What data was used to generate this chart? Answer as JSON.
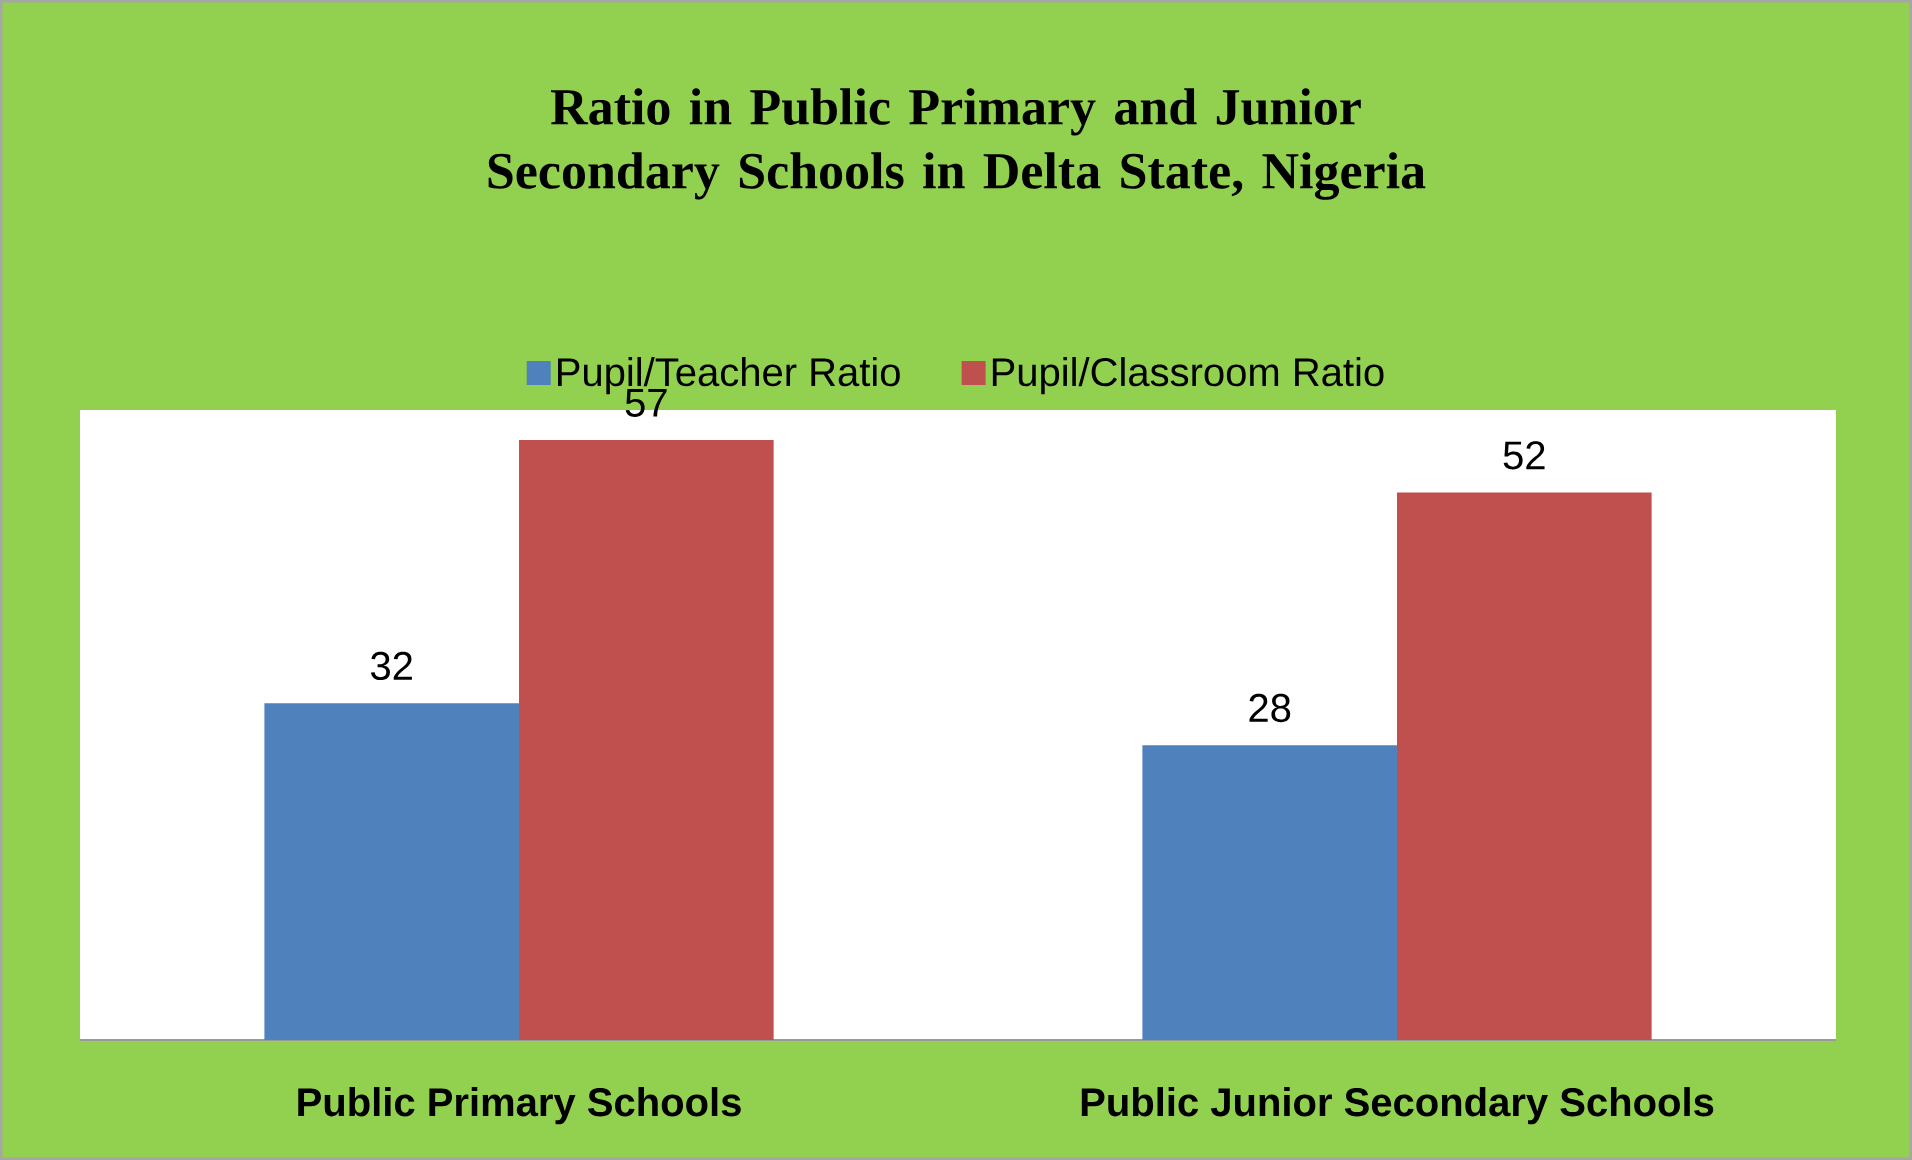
{
  "chart_data": {
    "type": "bar",
    "title": "Ratio in Public Primary and Junior Secondary Schools in Delta State, Nigeria",
    "categories": [
      "Public Primary Schools",
      "Public Junior Secondary Schools"
    ],
    "series": [
      {
        "name": "Pupil/Teacher Ratio",
        "color": "#4f81bd",
        "values": [
          32,
          28
        ]
      },
      {
        "name": "Pupil/Classroom Ratio",
        "color": "#c0504d",
        "values": [
          57,
          52
        ]
      }
    ],
    "data_labels": true,
    "legend": "top"
  }
}
